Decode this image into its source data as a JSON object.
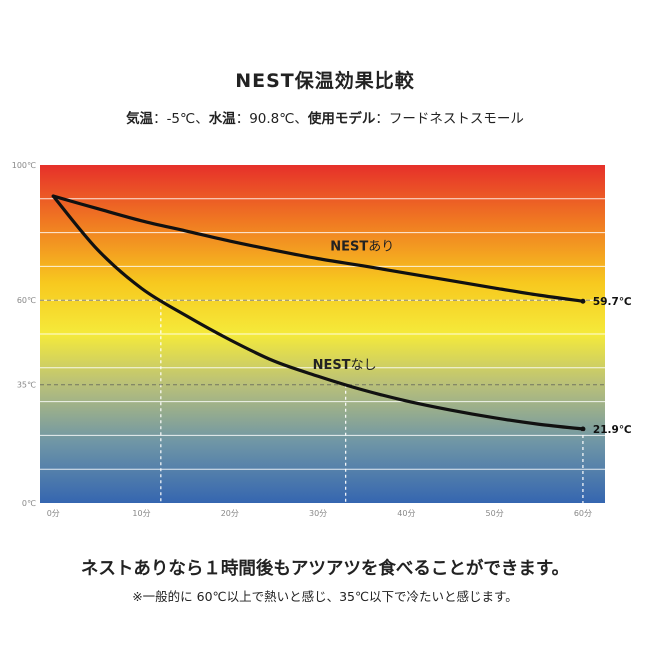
{
  "title": "NEST保温効果比較",
  "conditions": {
    "air_label": "気温",
    "air_value": "-5℃",
    "water_label": "水温",
    "water_value": "90.8℃",
    "model_label": "使用モデル",
    "model_value": "フードネストスモール",
    "separator": "：",
    "comma": "、"
  },
  "headline": "ネストありなら１時間後もアツアツを食べることができます。",
  "note": "※一般的に 60℃以上で熱いと感じ、35℃以下で冷たいと感じます。",
  "chart_data": {
    "type": "line",
    "x": [
      0,
      5,
      10,
      15,
      20,
      25,
      30,
      35,
      40,
      45,
      50,
      55,
      60
    ],
    "x_tick_labels": [
      "0分",
      "10分",
      "20分",
      "30分",
      "40分",
      "50分",
      "60分"
    ],
    "x_ticks": [
      0,
      10,
      20,
      30,
      40,
      50,
      60
    ],
    "xlim": [
      -1.5,
      62.5
    ],
    "y_tick_labels": [
      "0℃",
      "35℃",
      "60℃",
      "100℃"
    ],
    "y_ticks": [
      0,
      35,
      60,
      100
    ],
    "ylim": [
      0,
      100
    ],
    "reference_lines": [
      60,
      35
    ],
    "series": [
      {
        "name": "NESTあり",
        "label_bold": "NEST",
        "label_rest": "あり",
        "values": [
          90.8,
          87.1,
          83.5,
          80.5,
          77.5,
          74.8,
          72.3,
          70.2,
          68.0,
          65.8,
          63.6,
          61.5,
          59.7
        ],
        "end_label": "59.7℃"
      },
      {
        "name": "NESTなし",
        "label_bold": "NEST",
        "label_rest": "なし",
        "values": [
          90.8,
          75.0,
          63.5,
          55.5,
          48.3,
          42.0,
          37.5,
          33.5,
          30.2,
          27.5,
          25.2,
          23.3,
          21.9
        ],
        "end_label": "21.9℃"
      }
    ],
    "gradient_colors": [
      "#e6302a",
      "#f07a22",
      "#f7c91f",
      "#f5ea3a",
      "#b9c079",
      "#6f96a6",
      "#3566b0"
    ],
    "grid": true,
    "legend": "inline labels on lines"
  }
}
